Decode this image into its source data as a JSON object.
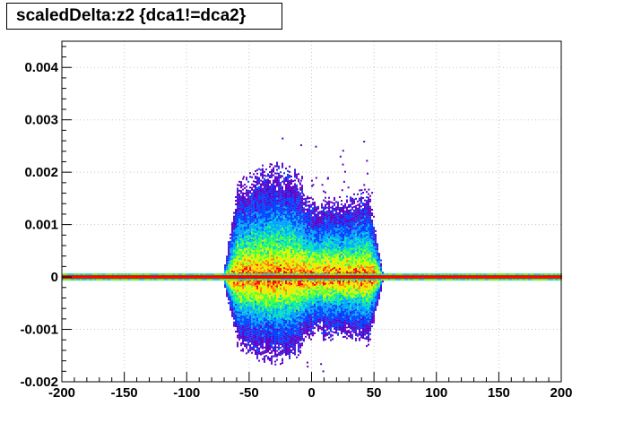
{
  "chart_data": {
    "type": "heatmap",
    "title": "scaledDelta:z2 {dca1!=dca2}",
    "xlabel": "",
    "ylabel": "",
    "xlim": [
      -200,
      200
    ],
    "ylim": [
      -0.002,
      0.0045
    ],
    "x_ticks": [
      -200,
      -150,
      -100,
      -50,
      0,
      50,
      100,
      150,
      200
    ],
    "x_tick_labels": [
      "-200",
      "-150",
      "-100",
      "-50",
      "0",
      "50",
      "100",
      "150",
      "200"
    ],
    "y_ticks": [
      -0.002,
      -0.001,
      0,
      0.001,
      0.002,
      0.003,
      0.004
    ],
    "y_tick_labels": [
      "-0.002",
      "-0.001",
      "0",
      "0.001",
      "0.002",
      "0.003",
      "0.004"
    ],
    "grid": true,
    "legend": "none",
    "colormap": [
      "#5a00c8",
      "#0040ff",
      "#00a0ff",
      "#00e0c0",
      "#40ff40",
      "#c0ff00",
      "#ffe000",
      "#ff8000",
      "#ff0000"
    ],
    "distribution": {
      "core_band": {
        "x_range": [
          -200,
          200
        ],
        "y_center": 0,
        "y_halfwidth": 5e-05,
        "level": "max"
      },
      "central_region": {
        "x_range": [
          -70,
          55
        ],
        "y_range": [
          -0.0018,
          0.0022
        ],
        "peak_y": 0,
        "level": "high-to-low"
      },
      "outliers_max_y": 0.0027
    }
  }
}
